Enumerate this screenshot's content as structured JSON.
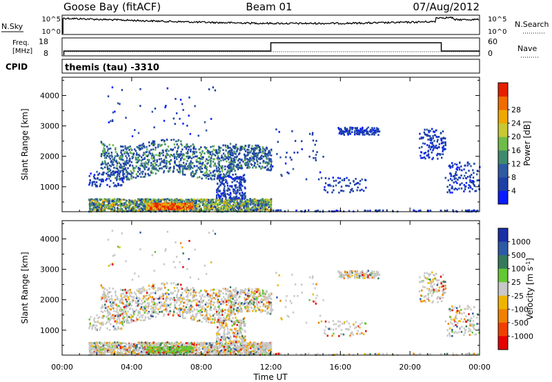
{
  "header": {
    "station": "Goose Bay (fitACF)",
    "beam": "Beam 01",
    "date": "07/Aug/2012"
  },
  "panels": {
    "noise": {
      "left_label": "N.Sky",
      "left_ticks": [
        "10^5",
        "10^0"
      ],
      "right_label": "N.Search",
      "right_ticks": [
        "10^5",
        "10^0"
      ]
    },
    "freq": {
      "left_label_line1": "Freq.",
      "left_label_line2": "[MHz]",
      "left_ticks": [
        "18",
        "8"
      ],
      "right_label": "Nave",
      "right_ticks": [
        "60",
        "0"
      ]
    },
    "cpid": {
      "label": "CPID",
      "program": "themis (tau) -3310"
    }
  },
  "chart_data": [
    {
      "type": "heatmap",
      "name": "power",
      "ylabel": "Slant Range [km]",
      "yticks": [
        1000,
        2000,
        3000,
        4000
      ],
      "ylim": [
        180,
        4600
      ],
      "xlim": [
        0,
        24
      ],
      "colorbar": {
        "label": "Power [dB]",
        "tick_labels": [
          "4",
          "8",
          "12",
          "16",
          "20",
          "24",
          "28"
        ],
        "colors": [
          "#0a1cff",
          "#1c3fa8",
          "#2e5aa2",
          "#3f8a6e",
          "#6fbb4a",
          "#c8c832",
          "#f0a800",
          "#f06c00",
          "#e61e00"
        ]
      }
    },
    {
      "type": "heatmap",
      "name": "velocity",
      "ylabel": "Slant Range [km]",
      "yticks": [
        1000,
        2000,
        3000,
        4000
      ],
      "ylim": [
        180,
        4600
      ],
      "xlim": [
        0,
        24
      ],
      "xticks": [
        "00:00",
        "04:00",
        "08:00",
        "12:00",
        "16:00",
        "20:00",
        "00:00"
      ],
      "xlabel": "Time UT",
      "colorbar": {
        "label": "Velocity [m s^-1]",
        "tick_labels": [
          "1000",
          "500",
          "100",
          "25",
          "-25",
          "-100",
          "-500",
          "-1000"
        ],
        "colors": [
          "#1a2ea6",
          "#2d5aa8",
          "#357a5c",
          "#64c832",
          "#c8c8c8",
          "#f0b400",
          "#f08000",
          "#f04000",
          "#e60000"
        ]
      }
    }
  ]
}
